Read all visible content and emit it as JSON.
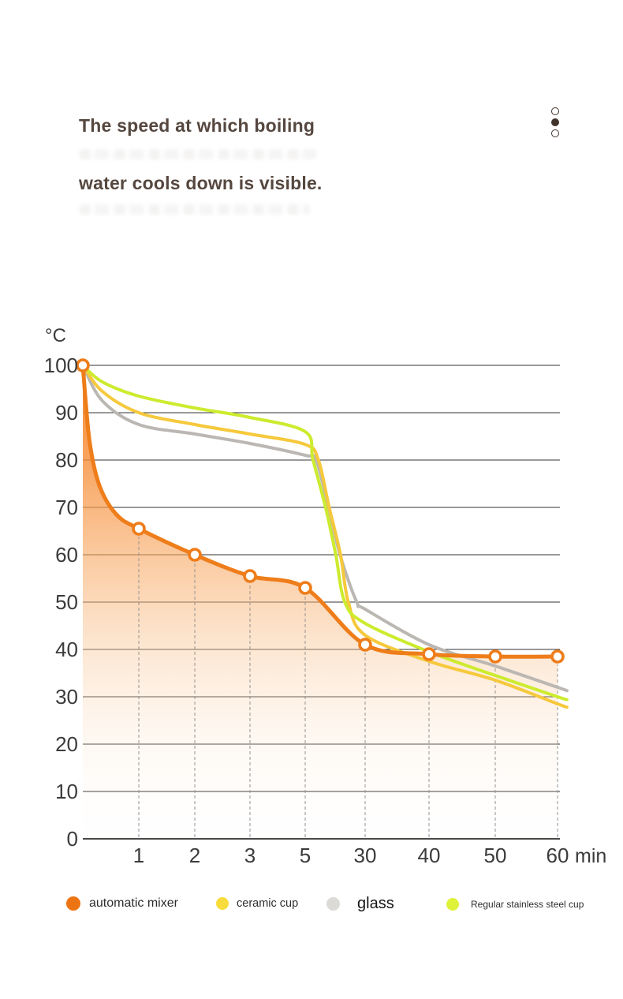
{
  "header": {
    "title_line1": "The speed at which boiling",
    "title_line2": "water cools down is visible.",
    "pager_dots": [
      {
        "state": "inactive"
      },
      {
        "state": "active"
      },
      {
        "state": "inactive"
      }
    ]
  },
  "chart_data": {
    "type": "line",
    "ylabel": "°C",
    "x_unit_label": "min",
    "x_minutes": [
      0,
      1,
      2,
      3,
      5,
      30,
      40,
      50,
      60
    ],
    "x_tick_labels": [
      "1",
      "2",
      "3",
      "5",
      "30",
      "40",
      "50",
      "60"
    ],
    "y_ticks": [
      0,
      10,
      20,
      30,
      40,
      50,
      60,
      70,
      80,
      90,
      100
    ],
    "ylim": [
      0,
      100
    ],
    "grid": "horizontal solid lines every 10°C, dashed vertical lines at x ticks",
    "legend_position": "bottom",
    "series": [
      {
        "name": "automatic mixer",
        "color": "#EE7D1A",
        "style": "line+area+markers",
        "values": [
          100,
          65.5,
          60,
          55.5,
          53,
          41,
          39,
          38.5,
          38.5
        ],
        "render_samples": [
          [
            0,
            100
          ],
          [
            0.12,
            84
          ],
          [
            0.3,
            74.5
          ],
          [
            0.6,
            68.5
          ],
          [
            1,
            65.5
          ],
          [
            2,
            60
          ],
          [
            3,
            55.5
          ],
          [
            4,
            53
          ],
          [
            5,
            41
          ],
          [
            6,
            39
          ],
          [
            7,
            38.5
          ],
          [
            8,
            38.5
          ]
        ]
      },
      {
        "name": "ceramic cup",
        "color": "#F6C93C",
        "style": "line",
        "values": [
          100,
          90,
          87.5,
          85.5,
          83.5,
          43,
          37.5,
          33.5,
          28.5
        ],
        "render_samples": [
          [
            0,
            100
          ],
          [
            0.35,
            94.5
          ],
          [
            1,
            90
          ],
          [
            2,
            87.5
          ],
          [
            3,
            85.5
          ],
          [
            4,
            83.3
          ],
          [
            4.22,
            80
          ],
          [
            4.4,
            70
          ],
          [
            4.59,
            60
          ],
          [
            4.72,
            50
          ],
          [
            5,
            43
          ],
          [
            6,
            37.5
          ],
          [
            7,
            33.5
          ],
          [
            8,
            28.5
          ],
          [
            8.15,
            27.8
          ]
        ]
      },
      {
        "name": "glass",
        "color": "#BBB7B2",
        "style": "line",
        "values": [
          100,
          87.5,
          85.5,
          83.5,
          81,
          48.5,
          41,
          36.5,
          32
        ],
        "render_samples": [
          [
            0,
            100
          ],
          [
            0.35,
            92.5
          ],
          [
            1,
            87.5
          ],
          [
            2,
            85.5
          ],
          [
            3,
            83.5
          ],
          [
            4,
            81
          ],
          [
            4.18,
            80
          ],
          [
            4.39,
            70
          ],
          [
            4.58,
            60
          ],
          [
            4.86,
            50
          ],
          [
            5,
            48.5
          ],
          [
            6,
            41
          ],
          [
            7,
            36.5
          ],
          [
            8,
            32
          ],
          [
            8.15,
            31.3
          ]
        ]
      },
      {
        "name": "Regular stainless steel cup",
        "color": "#CDEB2E",
        "style": "line",
        "values": [
          100,
          93.5,
          91,
          89,
          86,
          45.5,
          39.5,
          34.5,
          30
        ],
        "render_samples": [
          [
            0,
            100
          ],
          [
            0.35,
            96.5
          ],
          [
            1,
            93.5
          ],
          [
            2,
            91
          ],
          [
            3,
            89
          ],
          [
            4,
            86
          ],
          [
            4.13,
            80
          ],
          [
            4.34,
            70
          ],
          [
            4.51,
            60
          ],
          [
            4.66,
            50
          ],
          [
            5,
            45.5
          ],
          [
            6,
            39.5
          ],
          [
            7,
            34.5
          ],
          [
            8,
            30
          ],
          [
            8.15,
            29.4
          ]
        ]
      }
    ]
  },
  "legend": {
    "items": [
      {
        "label": "automatic mixer",
        "dot_color": "#EC7412"
      },
      {
        "label": "ceramic cup",
        "dot_color": "#F7DC3B"
      },
      {
        "label": "glass",
        "dot_color": "#DCDAD7"
      },
      {
        "label": "Regular stainless steel cup",
        "dot_color": "#DFF23A"
      }
    ]
  }
}
